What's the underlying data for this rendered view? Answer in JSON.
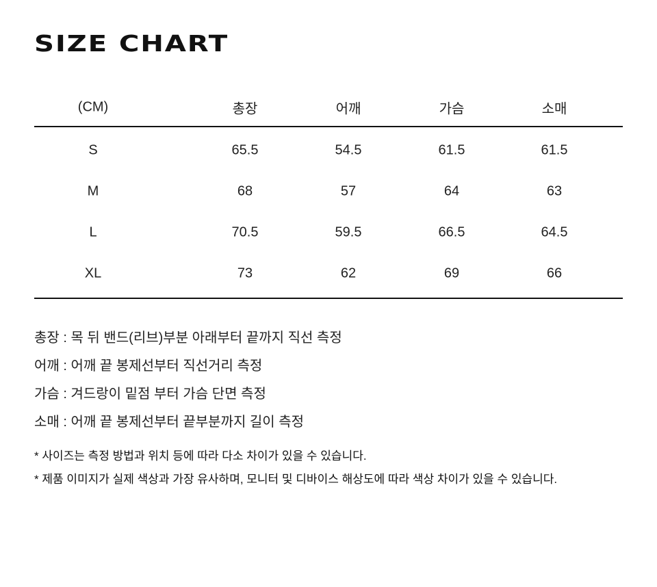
{
  "title": "SIZE CHART",
  "table": {
    "headers": [
      "(CM)",
      "총장",
      "어깨",
      "가슴",
      "소매"
    ],
    "rows": [
      [
        "S",
        "65.5",
        "54.5",
        "61.5",
        "61.5"
      ],
      [
        "M",
        "68",
        "57",
        "64",
        "63"
      ],
      [
        "L",
        "70.5",
        "59.5",
        "66.5",
        "64.5"
      ],
      [
        "XL",
        "73",
        "62",
        "69",
        "66"
      ]
    ]
  },
  "notes": [
    "총장 : 목 뒤 밴드(리브)부분 아래부터 끝까지 직선 측정",
    "어깨 : 어깨 끝 봉제선부터 직선거리 측정",
    "가슴 : 겨드랑이 밑점 부터 가슴 단면 측정",
    "소매 : 어깨 끝 봉제선부터 끝부분까지 길이 측정"
  ],
  "disclaimers": [
    "* 사이즈는 측정 방법과 위치 등에 따라 다소 차이가 있을 수 있습니다.",
    "* 제품 이미지가 실제 색상과 가장 유사하며, 모니터 및 디바이스 해상도에 따라 색상 차이가 있을 수 있습니다."
  ]
}
